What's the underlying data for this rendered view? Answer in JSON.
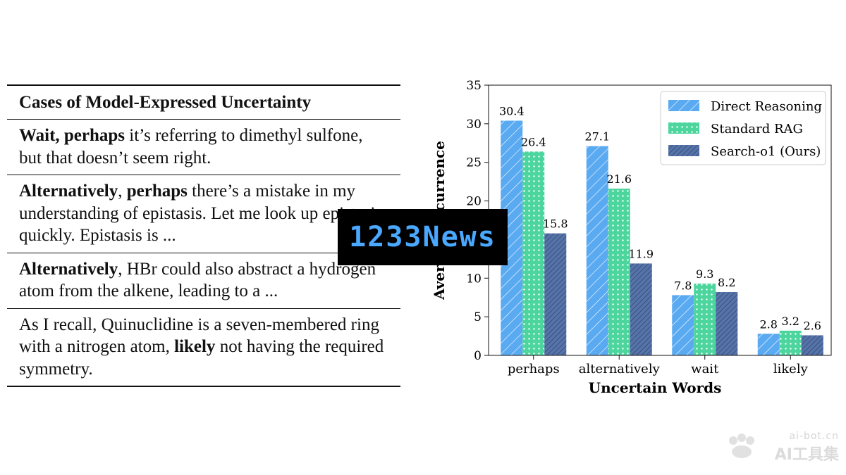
{
  "table": {
    "header": "Cases of Model-Expressed Uncertainty",
    "rows": [
      [
        {
          "t": "Wait, perhaps",
          "b": true
        },
        {
          "t": " it’s referring to dimethyl sulfone, but that doesn’t seem right.",
          "b": false
        }
      ],
      [
        {
          "t": "Alternatively",
          "b": true
        },
        {
          "t": ", ",
          "b": false
        },
        {
          "t": "perhaps",
          "b": true
        },
        {
          "t": " there’s a mistake in my understanding of epistasis. Let me look up epistasis quickly. Epistasis is ...",
          "b": false
        }
      ],
      [
        {
          "t": "Alternatively",
          "b": true
        },
        {
          "t": ", HBr could also abstract a hydrogen atom from the alkene, leading to a ...",
          "b": false
        }
      ],
      [
        {
          "t": "As I recall, Quinuclidine is a seven-membered ring with a nitrogen atom, ",
          "b": false
        },
        {
          "t": "likely",
          "b": true
        },
        {
          "t": " not having the required symmetry.",
          "b": false
        }
      ]
    ]
  },
  "chart_data": {
    "type": "bar",
    "title": "",
    "xlabel": "Uncertain Words",
    "ylabel": "Average Occurrence",
    "ylim": [
      0,
      35
    ],
    "yticks": [
      "0",
      "5",
      "10",
      "15",
      "20",
      "25",
      "30",
      "35"
    ],
    "categories": [
      "perhaps",
      "alternatively",
      "wait",
      "likely"
    ],
    "series": [
      {
        "name": "Direct Reasoning",
        "values": [
          30.4,
          27.1,
          7.8,
          2.8
        ],
        "labels": [
          "30.4",
          "27.1",
          "7.8",
          "2.8"
        ],
        "color": "#5aaaf2",
        "pattern": "diagonal-hatch"
      },
      {
        "name": "Standard RAG",
        "values": [
          26.4,
          21.6,
          9.3,
          3.2
        ],
        "labels": [
          "26.4",
          "21.6",
          "9.3",
          "3.2"
        ],
        "color": "#4dd59e",
        "pattern": "dots"
      },
      {
        "name": "Search-o1 (Ours)",
        "values": [
          15.8,
          11.9,
          8.2,
          2.6
        ],
        "labels": [
          "15.8",
          "11.9",
          "8.2",
          "2.6"
        ],
        "color": "#5674a8",
        "pattern": "dense-diagonal-hatch"
      }
    ],
    "legend_position": "top-right",
    "grid": false
  },
  "overlay": {
    "banner": "1233News",
    "watermark_url": "ai-bot.cn",
    "watermark_name": "AI工具集",
    "banner_color": "#4aa8ff"
  }
}
